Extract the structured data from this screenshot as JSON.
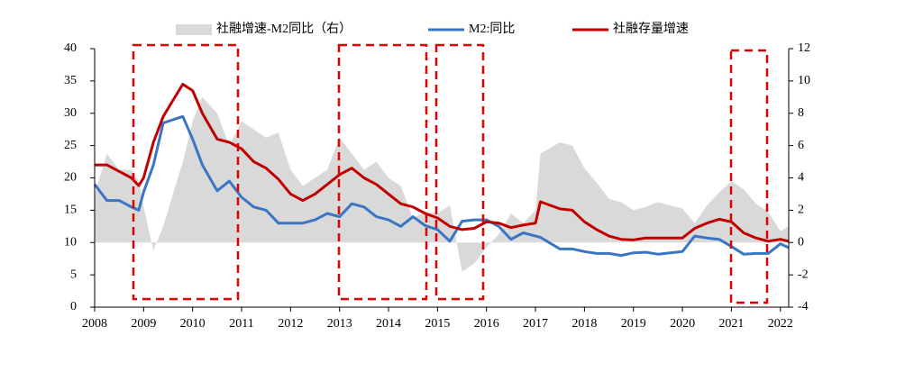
{
  "chart_data": {
    "type": "line",
    "x": [
      2008,
      2008.25,
      2008.5,
      2008.75,
      2008.9,
      2009,
      2009.2,
      2009.4,
      2009.6,
      2009.8,
      2010,
      2010.2,
      2010.5,
      2010.75,
      2011,
      2011.25,
      2011.5,
      2011.75,
      2012,
      2012.25,
      2012.5,
      2012.75,
      2013,
      2013.25,
      2013.5,
      2013.75,
      2014,
      2014.25,
      2014.5,
      2014.75,
      2015,
      2015.25,
      2015.5,
      2015.75,
      2016,
      2016.25,
      2016.5,
      2016.75,
      2017,
      2017.1,
      2017.5,
      2017.75,
      2018,
      2018.25,
      2018.5,
      2018.75,
      2019,
      2019.25,
      2019.5,
      2019.75,
      2020,
      2020.25,
      2020.5,
      2020.75,
      2021,
      2021.25,
      2021.5,
      2021.75,
      2022,
      2022.17
    ],
    "series": [
      {
        "name": "社融增速-M2同比（右）",
        "color": "#d9d9d9",
        "type": "area",
        "axis": "y2",
        "values": [
          3,
          5.5,
          4.5,
          4.5,
          3.8,
          2.2,
          -0.5,
          1,
          3,
          5,
          7.5,
          9,
          8,
          6,
          7.5,
          7,
          6.5,
          6.8,
          4.5,
          3.5,
          4,
          4.5,
          6.5,
          5.5,
          4.5,
          5,
          4,
          3.5,
          1.5,
          1.9,
          1.8,
          2.3,
          -1.8,
          -1.3,
          -0.3,
          0.5,
          1.8,
          1.2,
          2,
          5.5,
          6.2,
          6,
          4.6,
          3.7,
          2.7,
          2.5,
          2,
          2.2,
          2.5,
          2.3,
          2.1,
          1.2,
          2.3,
          3.1,
          3.8,
          3.3,
          2.4,
          1.9,
          0.7,
          1.0
        ]
      },
      {
        "name": "M2:同比",
        "color": "#3a75c4",
        "type": "line",
        "values": [
          19,
          16.5,
          16.5,
          15.5,
          15,
          17.8,
          22,
          28.5,
          29,
          29.5,
          26,
          22,
          18,
          19.5,
          17,
          15.5,
          15,
          13,
          13,
          13,
          13.5,
          14.5,
          14,
          16,
          15.5,
          14,
          13.5,
          12.5,
          14,
          12.6,
          12,
          10.2,
          13.3,
          13.5,
          13.5,
          12.5,
          10.5,
          11.5,
          11,
          10.8,
          9,
          9,
          8.6,
          8.3,
          8.3,
          8,
          8.4,
          8.5,
          8.2,
          8.4,
          8.6,
          11,
          10.7,
          10.5,
          9.4,
          8.2,
          8.3,
          8.3,
          9.8,
          9.2
        ]
      },
      {
        "name": "社融存量增速",
        "color": "#c00000",
        "type": "line",
        "values": [
          22,
          22,
          21,
          20,
          18.8,
          20,
          25.5,
          29.5,
          32,
          34.5,
          33.5,
          30,
          26,
          25.5,
          24.5,
          22.5,
          21.5,
          19.8,
          17.5,
          16.5,
          17.5,
          19,
          20.5,
          21.5,
          20,
          19,
          17.5,
          16,
          15.5,
          14.5,
          13.8,
          12.5,
          12,
          12.2,
          13.2,
          13,
          12.3,
          12.7,
          13,
          16.3,
          15.2,
          15,
          13.2,
          12,
          11,
          10.5,
          10.4,
          10.7,
          10.7,
          10.7,
          10.7,
          12.2,
          13,
          13.6,
          13.2,
          11.5,
          10.7,
          10.2,
          10.5,
          10.2
        ]
      }
    ],
    "xlim": [
      2008,
      2022.17
    ],
    "xticks": [
      2008,
      2009,
      2010,
      2011,
      2012,
      2013,
      2014,
      2015,
      2016,
      2017,
      2018,
      2019,
      2020,
      2021,
      2022
    ],
    "ylim": [
      0,
      40
    ],
    "yticks": [
      0,
      5,
      10,
      15,
      20,
      25,
      30,
      35,
      40
    ],
    "y2lim": [
      -4,
      12
    ],
    "y2ticks": [
      -4,
      -2,
      0,
      2,
      4,
      6,
      8,
      10,
      12
    ],
    "legend": "top"
  }
}
